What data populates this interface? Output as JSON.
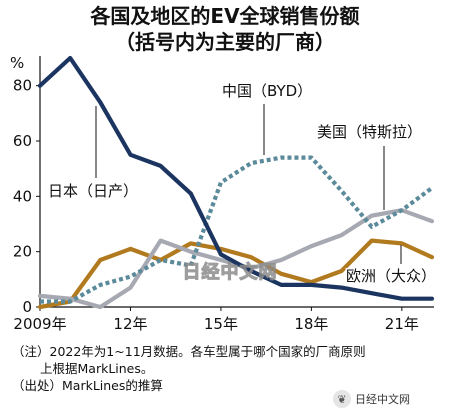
{
  "title_line1": "各国及地区的EV全球销售份额",
  "title_line2": "（括号内为主要的厂商）",
  "watermark_center": "日经中文网",
  "watermark_corner": "日经中文网",
  "notes": {
    "line1": "（注）2022年为1~11月数据。各车型属于哪个国家的厂商原则",
    "line2": "上根据MarkLines。",
    "line3": "（出处）MarkLines的推算"
  },
  "chart_data": {
    "type": "line",
    "x": [
      2009,
      2010,
      2011,
      2012,
      2013,
      2014,
      2015,
      2016,
      2017,
      2018,
      2019,
      2020,
      2021,
      2022
    ],
    "x_tick_values": [
      2009,
      2012,
      2015,
      2018,
      2021
    ],
    "x_tick_labels": [
      "2009年",
      "12年",
      "15年",
      "18年",
      "21年"
    ],
    "y_unit": "%",
    "ylim": [
      0,
      90
    ],
    "y_ticks": [
      0,
      20,
      40,
      60,
      80
    ],
    "grid": false,
    "series": [
      {
        "name": "日本（日产）",
        "color": "#1b3560",
        "style": "solid",
        "values": [
          80,
          90,
          74,
          55,
          51,
          41,
          19,
          13,
          8,
          8,
          7,
          5,
          3,
          3
        ]
      },
      {
        "name": "中国（BYD）",
        "color": "#5b8a9a",
        "style": "dotted",
        "values": [
          2,
          2,
          8,
          11,
          17,
          15,
          45,
          52,
          54,
          54,
          42,
          29,
          35,
          43
        ]
      },
      {
        "name": "美国（特斯拉）",
        "color": "#a7a9b2",
        "style": "solid",
        "values": [
          4,
          3,
          0,
          7,
          24,
          20,
          17,
          14,
          17,
          22,
          26,
          33,
          35,
          31
        ]
      },
      {
        "name": "欧洲（大众）",
        "color": "#b27a1f",
        "style": "solid",
        "values": [
          0,
          2,
          17,
          21,
          17,
          23,
          21,
          18,
          12,
          9,
          13,
          24,
          23,
          18
        ]
      }
    ]
  }
}
